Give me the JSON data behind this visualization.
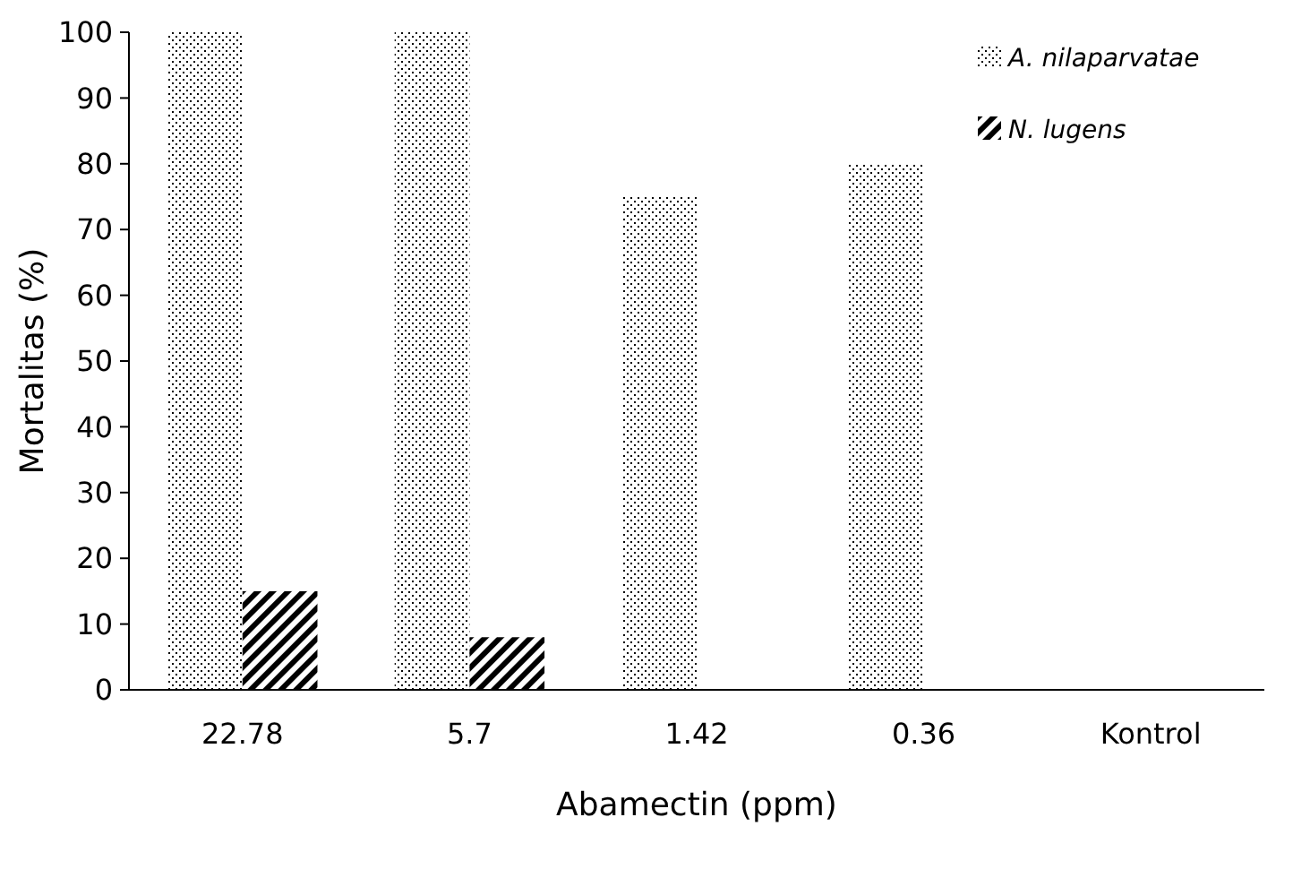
{
  "chart_data": {
    "type": "bar",
    "xlabel": "Abamectin (ppm)",
    "ylabel": "Mortalitas (%)",
    "categories": [
      "22.78",
      "5.7",
      "1.42",
      "0.36",
      "Kontrol"
    ],
    "series": [
      {
        "name": "A. nilaparvatae",
        "color": "#000000",
        "values": [
          100,
          100,
          75,
          80,
          0
        ]
      },
      {
        "name": "N. lugens",
        "color": "#000000",
        "values": [
          15,
          8,
          0,
          0,
          0
        ]
      }
    ],
    "ylim": [
      0,
      100
    ],
    "yticks": [
      0,
      10,
      20,
      30,
      40,
      50,
      60,
      70,
      80,
      90,
      100
    ],
    "grid": false,
    "legend": "top right"
  }
}
